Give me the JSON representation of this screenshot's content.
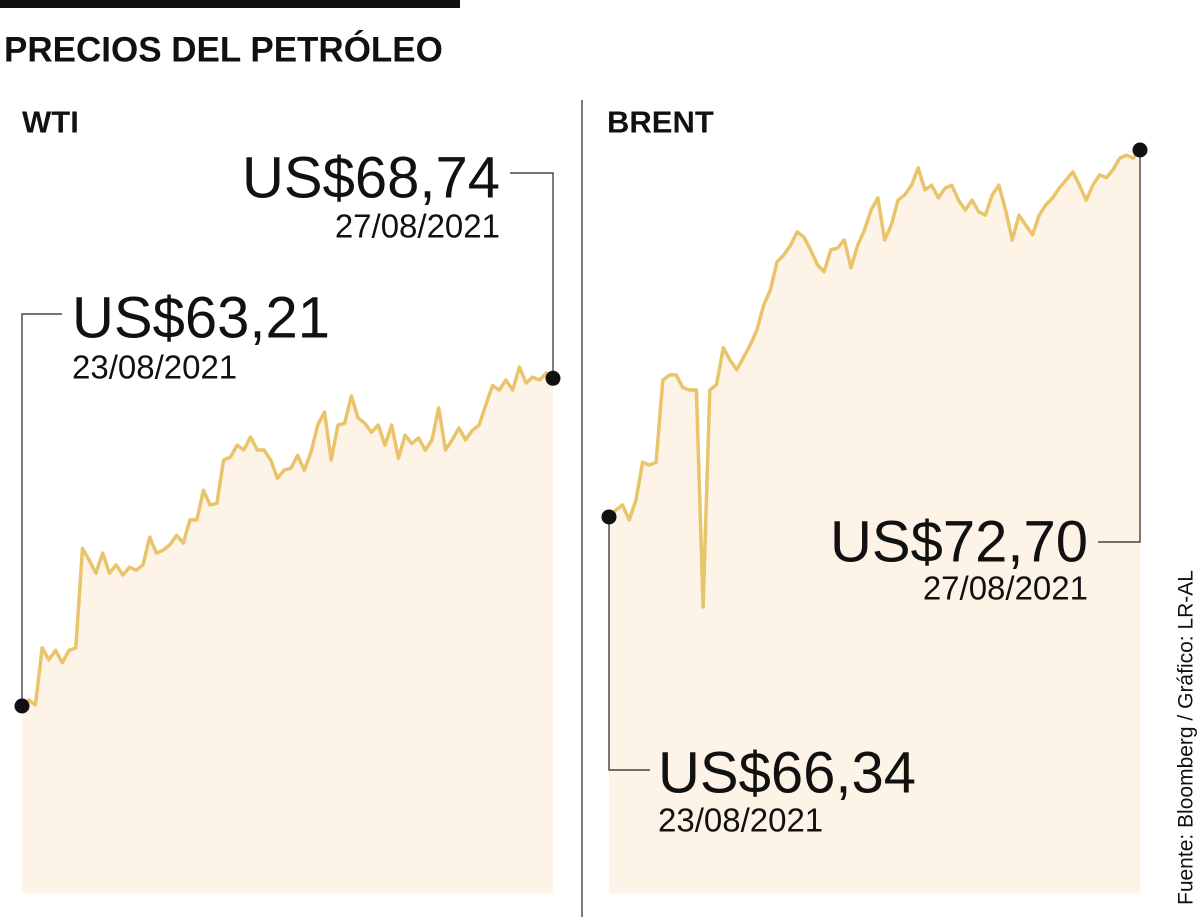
{
  "title": "PRECIOS DEL PETRÓLEO",
  "source": "Fuente: Bloomberg / Gráfico: LR-AL",
  "chart_data": [
    {
      "type": "line",
      "title": "WTI",
      "color": "#e9c46a",
      "fill_color": "#fdf4e7",
      "categories": [
        "23/08/2021",
        null,
        null,
        null,
        null,
        null,
        null,
        null,
        null,
        null,
        null,
        null,
        null,
        null,
        null,
        null,
        null,
        null,
        null,
        null,
        null,
        null,
        null,
        null,
        null,
        null,
        null,
        null,
        null,
        null,
        null,
        null,
        null,
        null,
        null,
        null,
        null,
        null,
        null,
        null,
        null,
        null,
        null,
        null,
        null,
        null,
        null,
        null,
        null,
        null,
        null,
        null,
        null,
        null,
        null,
        null,
        null,
        null,
        null,
        null,
        null,
        null,
        null,
        null,
        null,
        null,
        null,
        null,
        null,
        null,
        null,
        null,
        null,
        null,
        null,
        null,
        null,
        null,
        null,
        "27/08/2021"
      ],
      "values": [
        63.21,
        63.31,
        63.23,
        64.19,
        63.99,
        64.15,
        63.94,
        64.15,
        64.19,
        65.87,
        65.67,
        65.45,
        65.79,
        65.45,
        65.59,
        65.42,
        65.55,
        65.5,
        65.59,
        66.06,
        65.79,
        65.84,
        65.93,
        66.09,
        65.96,
        66.35,
        66.35,
        66.85,
        66.6,
        66.63,
        67.36,
        67.41,
        67.61,
        67.53,
        67.75,
        67.53,
        67.53,
        67.36,
        67.05,
        67.19,
        67.22,
        67.44,
        67.19,
        67.49,
        67.95,
        68.17,
        67.36,
        67.95,
        67.98,
        68.44,
        68.07,
        67.98,
        67.83,
        67.95,
        67.61,
        67.95,
        67.39,
        67.78,
        67.64,
        67.73,
        67.53,
        67.7,
        68.24,
        67.53,
        67.7,
        67.9,
        67.7,
        67.86,
        67.95,
        68.29,
        68.62,
        68.54,
        68.71,
        68.54,
        68.93,
        68.66,
        68.76,
        68.71,
        68.83,
        68.74
      ],
      "value_labels": [
        "US$63,21",
        null,
        null,
        null,
        null,
        null,
        null,
        null,
        null,
        null,
        null,
        null,
        null,
        null,
        null,
        null,
        null,
        null,
        null,
        null,
        null,
        null,
        null,
        null,
        null,
        null,
        null,
        null,
        null,
        null,
        null,
        null,
        null,
        null,
        null,
        null,
        null,
        null,
        null,
        null,
        null,
        null,
        null,
        null,
        null,
        null,
        null,
        null,
        null,
        null,
        null,
        null,
        null,
        null,
        null,
        null,
        null,
        null,
        null,
        null,
        null,
        null,
        null,
        null,
        null,
        null,
        null,
        null,
        null,
        null,
        null,
        null,
        null,
        null,
        null,
        null,
        null,
        null,
        null,
        "US$68,74"
      ]
    },
    {
      "type": "line",
      "title": "BRENT",
      "color": "#e9c46a",
      "fill_color": "#fdf4e7",
      "categories": [
        "23/08/2021",
        null,
        null,
        null,
        null,
        null,
        null,
        null,
        null,
        null,
        null,
        null,
        null,
        null,
        null,
        null,
        null,
        null,
        null,
        null,
        null,
        null,
        null,
        null,
        null,
        null,
        null,
        null,
        null,
        null,
        null,
        null,
        null,
        null,
        null,
        null,
        null,
        null,
        null,
        null,
        null,
        null,
        null,
        null,
        null,
        null,
        null,
        null,
        null,
        null,
        null,
        null,
        null,
        null,
        null,
        null,
        null,
        null,
        null,
        null,
        null,
        null,
        null,
        null,
        null,
        null,
        null,
        null,
        null,
        null,
        null,
        null,
        null,
        null,
        null,
        null,
        null,
        null,
        null,
        "27/08/2021"
      ],
      "values": [
        66.34,
        66.46,
        66.55,
        66.29,
        66.63,
        67.29,
        67.24,
        67.29,
        68.71,
        68.8,
        68.8,
        68.58,
        68.54,
        68.54,
        64.78,
        68.54,
        68.63,
        69.27,
        69.06,
        68.89,
        69.1,
        69.32,
        69.58,
        70.01,
        70.27,
        70.76,
        70.88,
        71.05,
        71.28,
        71.19,
        70.97,
        70.71,
        70.59,
        70.97,
        71.0,
        71.14,
        70.66,
        71.05,
        71.31,
        71.66,
        71.87,
        71.14,
        71.4,
        71.83,
        71.92,
        72.09,
        72.39,
        72.01,
        72.09,
        71.87,
        72.04,
        72.09,
        71.83,
        71.66,
        71.83,
        71.63,
        71.57,
        71.92,
        72.09,
        71.66,
        71.14,
        71.57,
        71.4,
        71.23,
        71.57,
        71.75,
        71.87,
        72.04,
        72.18,
        72.32,
        72.09,
        71.83,
        72.09,
        72.27,
        72.22,
        72.36,
        72.56,
        72.61,
        72.56,
        72.7
      ],
      "value_labels": [
        "US$66,34",
        null,
        null,
        null,
        null,
        null,
        null,
        null,
        null,
        null,
        null,
        null,
        null,
        null,
        null,
        null,
        null,
        null,
        null,
        null,
        null,
        null,
        null,
        null,
        null,
        null,
        null,
        null,
        null,
        null,
        null,
        null,
        null,
        null,
        null,
        null,
        null,
        null,
        null,
        null,
        null,
        null,
        null,
        null,
        null,
        null,
        null,
        null,
        null,
        null,
        null,
        null,
        null,
        null,
        null,
        null,
        null,
        null,
        null,
        null,
        null,
        null,
        null,
        null,
        null,
        null,
        null,
        null,
        null,
        null,
        null,
        null,
        null,
        null,
        null,
        null,
        null,
        null,
        null,
        "US$72,70"
      ]
    }
  ]
}
